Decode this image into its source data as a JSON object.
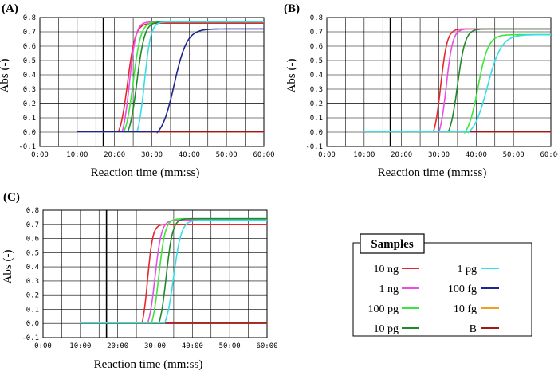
{
  "chart_data": [
    {
      "type": "line",
      "panel": "(A)",
      "xlabel": "Reaction time (mm:ss)",
      "ylabel": "Abs (-)",
      "xlim": [
        0,
        60
      ],
      "ylim": [
        -0.1,
        0.8
      ],
      "x_ticks": [
        "0:00",
        "10:00",
        "20:00",
        "30:00",
        "40:00",
        "50:00",
        "60:00"
      ],
      "y_ticks": [
        "-0.1",
        "0.0",
        "0.1",
        "0.2",
        "0.3",
        "0.4",
        "0.5",
        "0.6",
        "0.7",
        "0.8"
      ],
      "grid": true,
      "series": [
        {
          "name": "10 ng",
          "threshold": 21,
          "midpoint": 23.5,
          "plateau": 0.76
        },
        {
          "name": "1 ng",
          "threshold": 22,
          "midpoint": 24,
          "plateau": 0.77
        },
        {
          "name": "100 pg",
          "threshold": 22.5,
          "midpoint": 25,
          "plateau": 0.77
        },
        {
          "name": "10 pg",
          "threshold": 23.5,
          "midpoint": 26,
          "plateau": 0.77
        },
        {
          "name": "1 pg",
          "threshold": 26,
          "midpoint": 28,
          "plateau": 0.77
        },
        {
          "name": "100 fg",
          "threshold": 31.5,
          "midpoint": 36,
          "plateau": 0.72
        },
        {
          "name": "10 fg",
          "threshold": null,
          "midpoint": null,
          "plateau": 0.0
        },
        {
          "name": "B",
          "threshold": null,
          "midpoint": null,
          "plateau": 0.0
        }
      ]
    },
    {
      "type": "line",
      "panel": "(B)",
      "xlabel": "Reaction time (mm:ss)",
      "ylabel": "Abs (-)",
      "xlim": [
        0,
        60
      ],
      "ylim": [
        -0.1,
        0.8
      ],
      "x_ticks": [
        "0:00",
        "10:00",
        "20:00",
        "30:00",
        "40:00",
        "50:00",
        "60:00"
      ],
      "y_ticks": [
        "-0.1",
        "0.0",
        "0.1",
        "0.2",
        "0.3",
        "0.4",
        "0.5",
        "0.6",
        "0.7",
        "0.8"
      ],
      "grid": true,
      "series": [
        {
          "name": "10 ng",
          "threshold": 28.5,
          "midpoint": 30.5,
          "plateau": 0.72
        },
        {
          "name": "1 ng",
          "threshold": 30,
          "midpoint": 32,
          "plateau": 0.72
        },
        {
          "name": "100 pg",
          "threshold": 37,
          "midpoint": 40.5,
          "plateau": 0.68
        },
        {
          "name": "10 pg",
          "threshold": 32.5,
          "midpoint": 35,
          "plateau": 0.72
        },
        {
          "name": "1 pg",
          "threshold": 38,
          "midpoint": 43,
          "plateau": 0.68
        },
        {
          "name": "100 fg",
          "threshold": null,
          "midpoint": null,
          "plateau": 0.0
        },
        {
          "name": "10 fg",
          "threshold": null,
          "midpoint": null,
          "plateau": 0.0
        },
        {
          "name": "B",
          "threshold": null,
          "midpoint": null,
          "plateau": 0.0
        }
      ]
    },
    {
      "type": "line",
      "panel": "(C)",
      "xlabel": "Reaction time (mm:ss)",
      "ylabel": "Abs (-)",
      "xlim": [
        0,
        60
      ],
      "ylim": [
        -0.1,
        0.8
      ],
      "x_ticks": [
        "0:00",
        "10:00",
        "20:00",
        "30:00",
        "40:00",
        "50:00",
        "60:00"
      ],
      "y_ticks": [
        "-0.1",
        "0.0",
        "0.1",
        "0.2",
        "0.3",
        "0.4",
        "0.5",
        "0.6",
        "0.7",
        "0.8"
      ],
      "grid": true,
      "series": [
        {
          "name": "10 ng",
          "threshold": 26.5,
          "midpoint": 28,
          "plateau": 0.7
        },
        {
          "name": "1 ng",
          "threshold": 28,
          "midpoint": 30,
          "plateau": 0.73
        },
        {
          "name": "100 pg",
          "threshold": 29,
          "midpoint": 31,
          "plateau": 0.74
        },
        {
          "name": "10 pg",
          "threshold": 31,
          "midpoint": 33,
          "plateau": 0.74
        },
        {
          "name": "1 pg",
          "threshold": 32.5,
          "midpoint": 35,
          "plateau": 0.73
        },
        {
          "name": "100 fg",
          "threshold": null,
          "midpoint": null,
          "plateau": 0.0
        },
        {
          "name": "10 fg",
          "threshold": null,
          "midpoint": null,
          "plateau": 0.0
        },
        {
          "name": "B",
          "threshold": null,
          "midpoint": null,
          "plateau": 0.0
        }
      ]
    }
  ],
  "legend": {
    "title": "Samples",
    "items": [
      {
        "label": "10 ng",
        "color": "#e8262e"
      },
      {
        "label": "1 ng",
        "color": "#e84ee6"
      },
      {
        "label": "100 pg",
        "color": "#38e838"
      },
      {
        "label": "10 pg",
        "color": "#1e8a2a"
      },
      {
        "label": "1 pg",
        "color": "#34e0e8"
      },
      {
        "label": "100 fg",
        "color": "#1c2590"
      },
      {
        "label": "10 fg",
        "color": "#f0a020"
      },
      {
        "label": "B",
        "color": "#a01818"
      }
    ]
  }
}
